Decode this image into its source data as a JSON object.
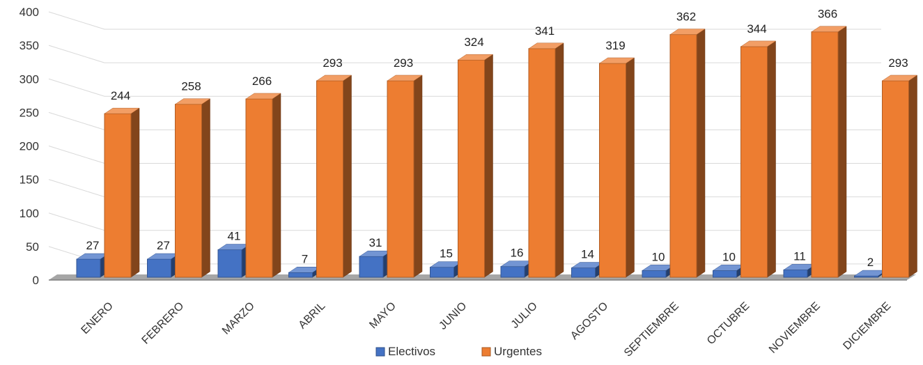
{
  "chart_data": {
    "type": "bar",
    "categories": [
      "ENERO",
      "FEBRERO",
      "MARZO",
      "ABRIL",
      "MAYO",
      "JUNIO",
      "JULIO",
      "AGOSTO",
      "SEPTIEMBRE",
      "OCTUBRE",
      "NOVIEMBRE",
      "DICIEMBRE"
    ],
    "series": [
      {
        "name": "Electivos",
        "values": [
          27,
          27,
          41,
          7,
          31,
          15,
          16,
          14,
          10,
          10,
          11,
          2
        ],
        "color": "#4472c4"
      },
      {
        "name": "Urgentes",
        "values": [
          244,
          258,
          266,
          293,
          293,
          324,
          341,
          319,
          362,
          344,
          366,
          293
        ],
        "color": "#ed7d31"
      }
    ],
    "y_ticks": [
      "0",
      "50",
      "100",
      "150",
      "200",
      "250",
      "300",
      "350",
      "400"
    ],
    "ylim": [
      0,
      400
    ],
    "grid": true,
    "legend_position": "bottom",
    "style": "3d-clustered-column"
  }
}
